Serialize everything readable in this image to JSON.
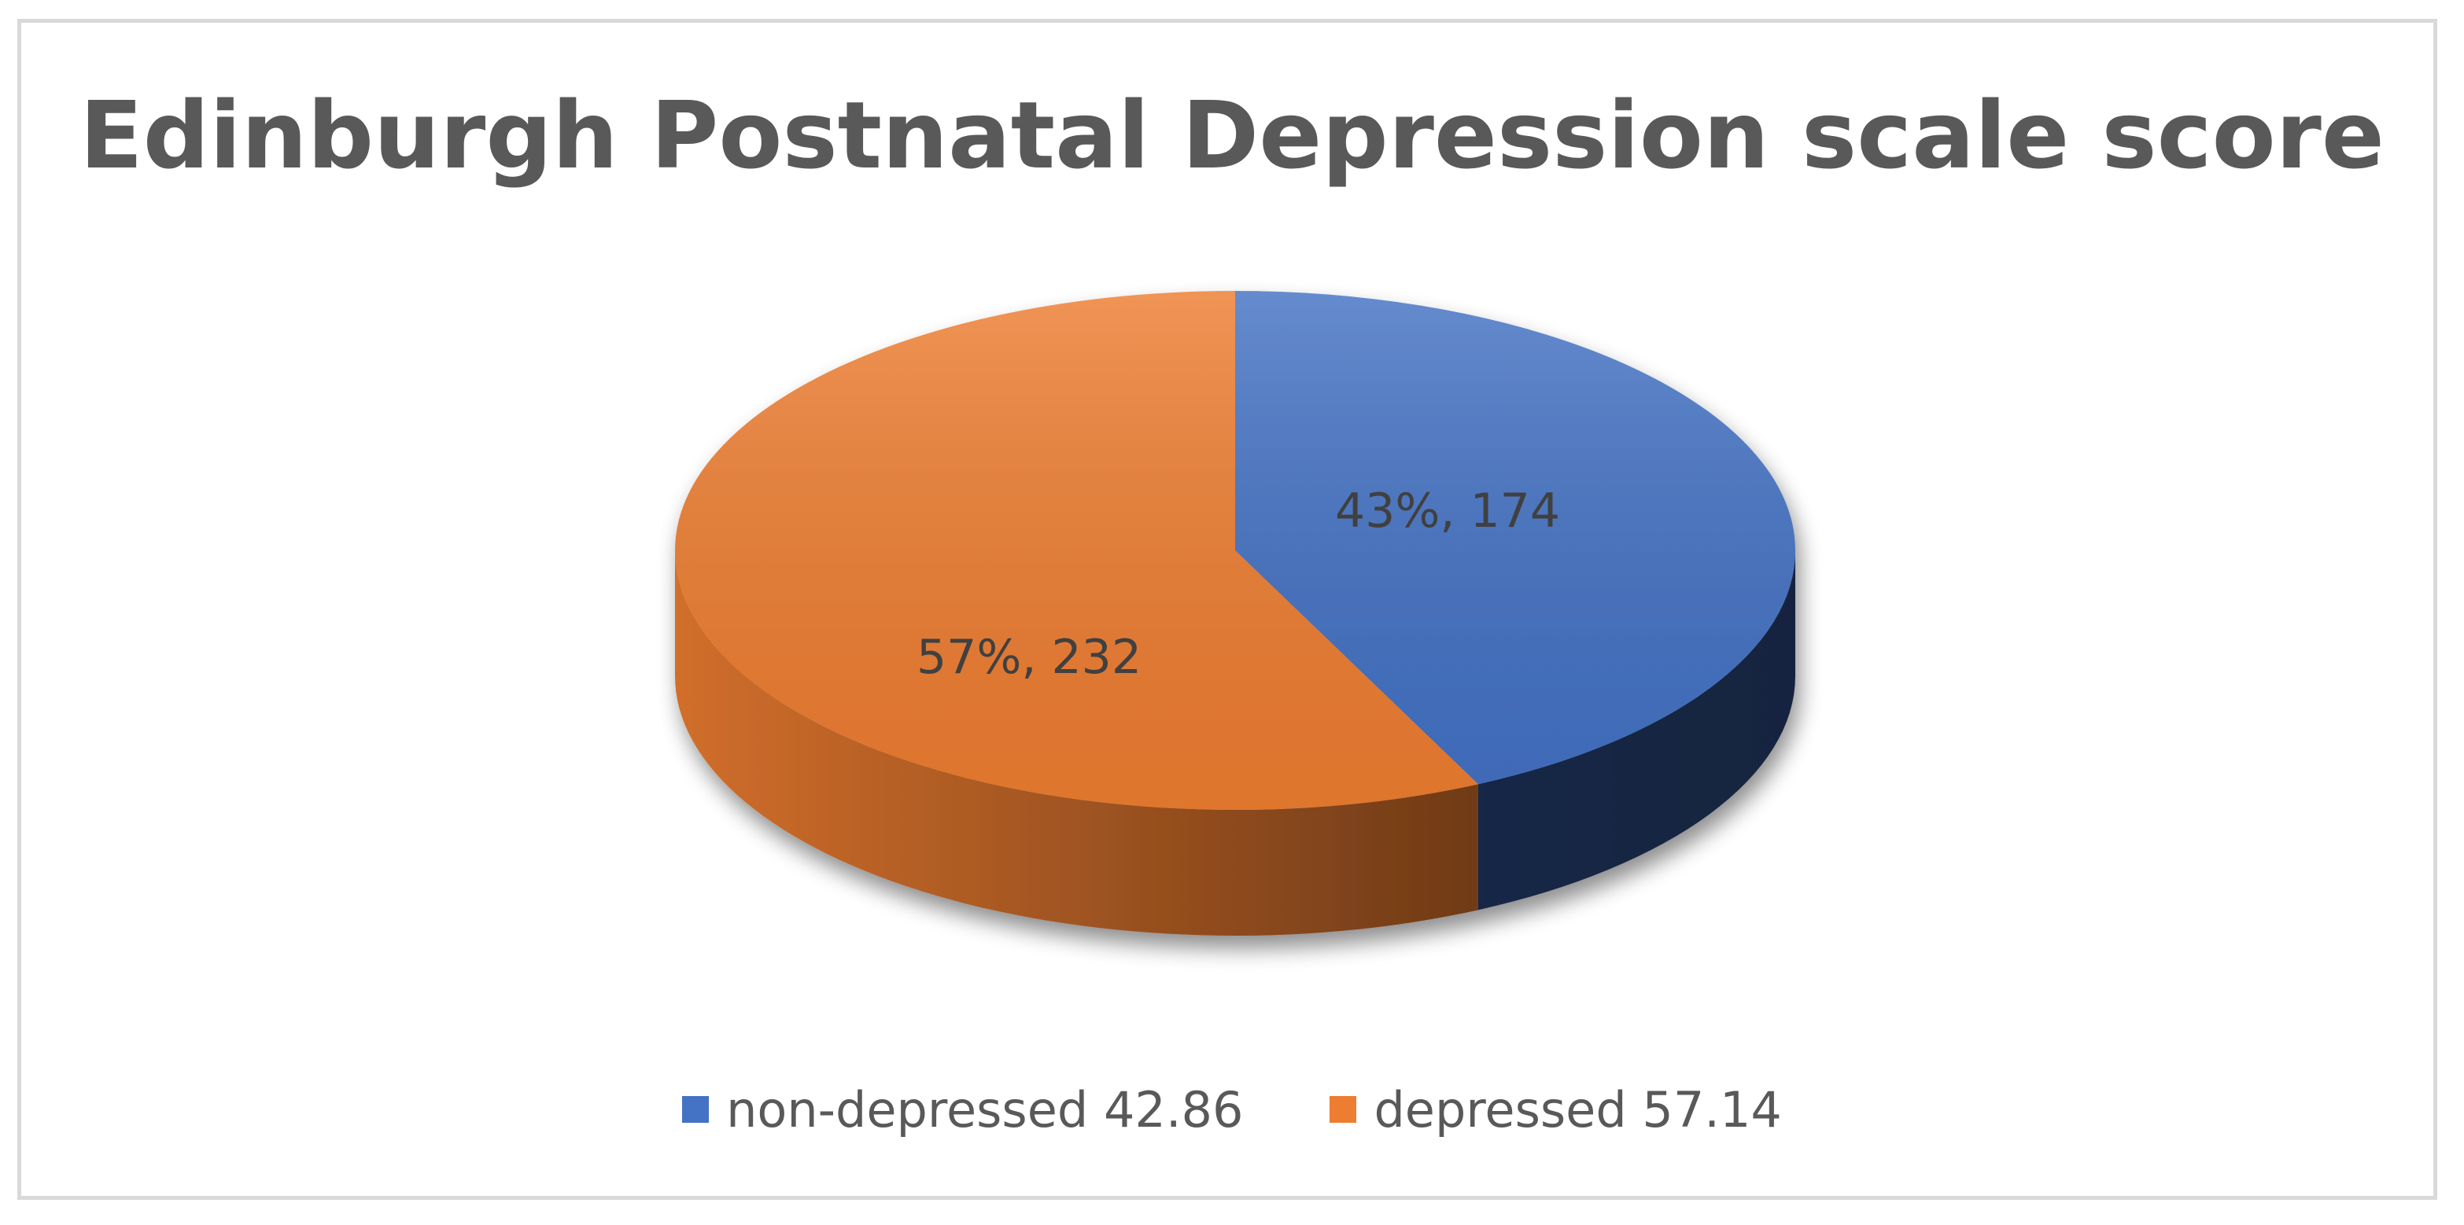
{
  "chart_data": {
    "type": "pie",
    "title": "Edinburgh Postnatal Depression scale score",
    "slices": [
      {
        "legend_label": "non-depressed 42.86",
        "value": 174,
        "percent_label": "43%, 174",
        "color": "#4472c4"
      },
      {
        "legend_label": "depressed 57.14",
        "value": 232,
        "percent_label": "57%, 232",
        "color": "#ed7d31"
      }
    ],
    "legend_position": "bottom",
    "style": "3d"
  }
}
